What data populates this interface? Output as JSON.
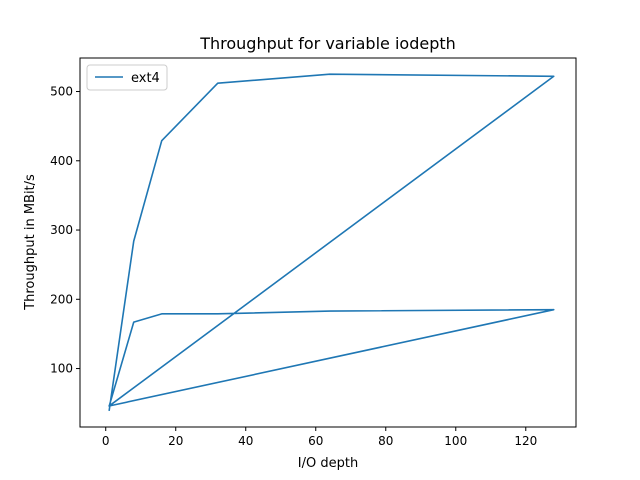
{
  "chart_data": {
    "type": "line",
    "title": "Throughput for variable iodepth",
    "xlabel": "I/O depth",
    "ylabel": "Throughput in MBit/s",
    "xlim": [
      -7.35,
      134.35
    ],
    "ylim": [
      15.6,
      548.4
    ],
    "xticks": [
      0,
      20,
      40,
      60,
      80,
      100,
      120
    ],
    "yticks": [
      100,
      200,
      300,
      400,
      500
    ],
    "grid": false,
    "legend_position": "top-left",
    "series": [
      {
        "name": "ext4",
        "color": "#1f77b4",
        "x": [
          1,
          8,
          16,
          32,
          64,
          128,
          1,
          8,
          16,
          32,
          64,
          128,
          1
        ],
        "y": [
          40,
          284,
          429,
          512,
          525,
          522,
          46,
          167,
          179,
          179,
          183,
          185,
          46
        ]
      }
    ]
  }
}
